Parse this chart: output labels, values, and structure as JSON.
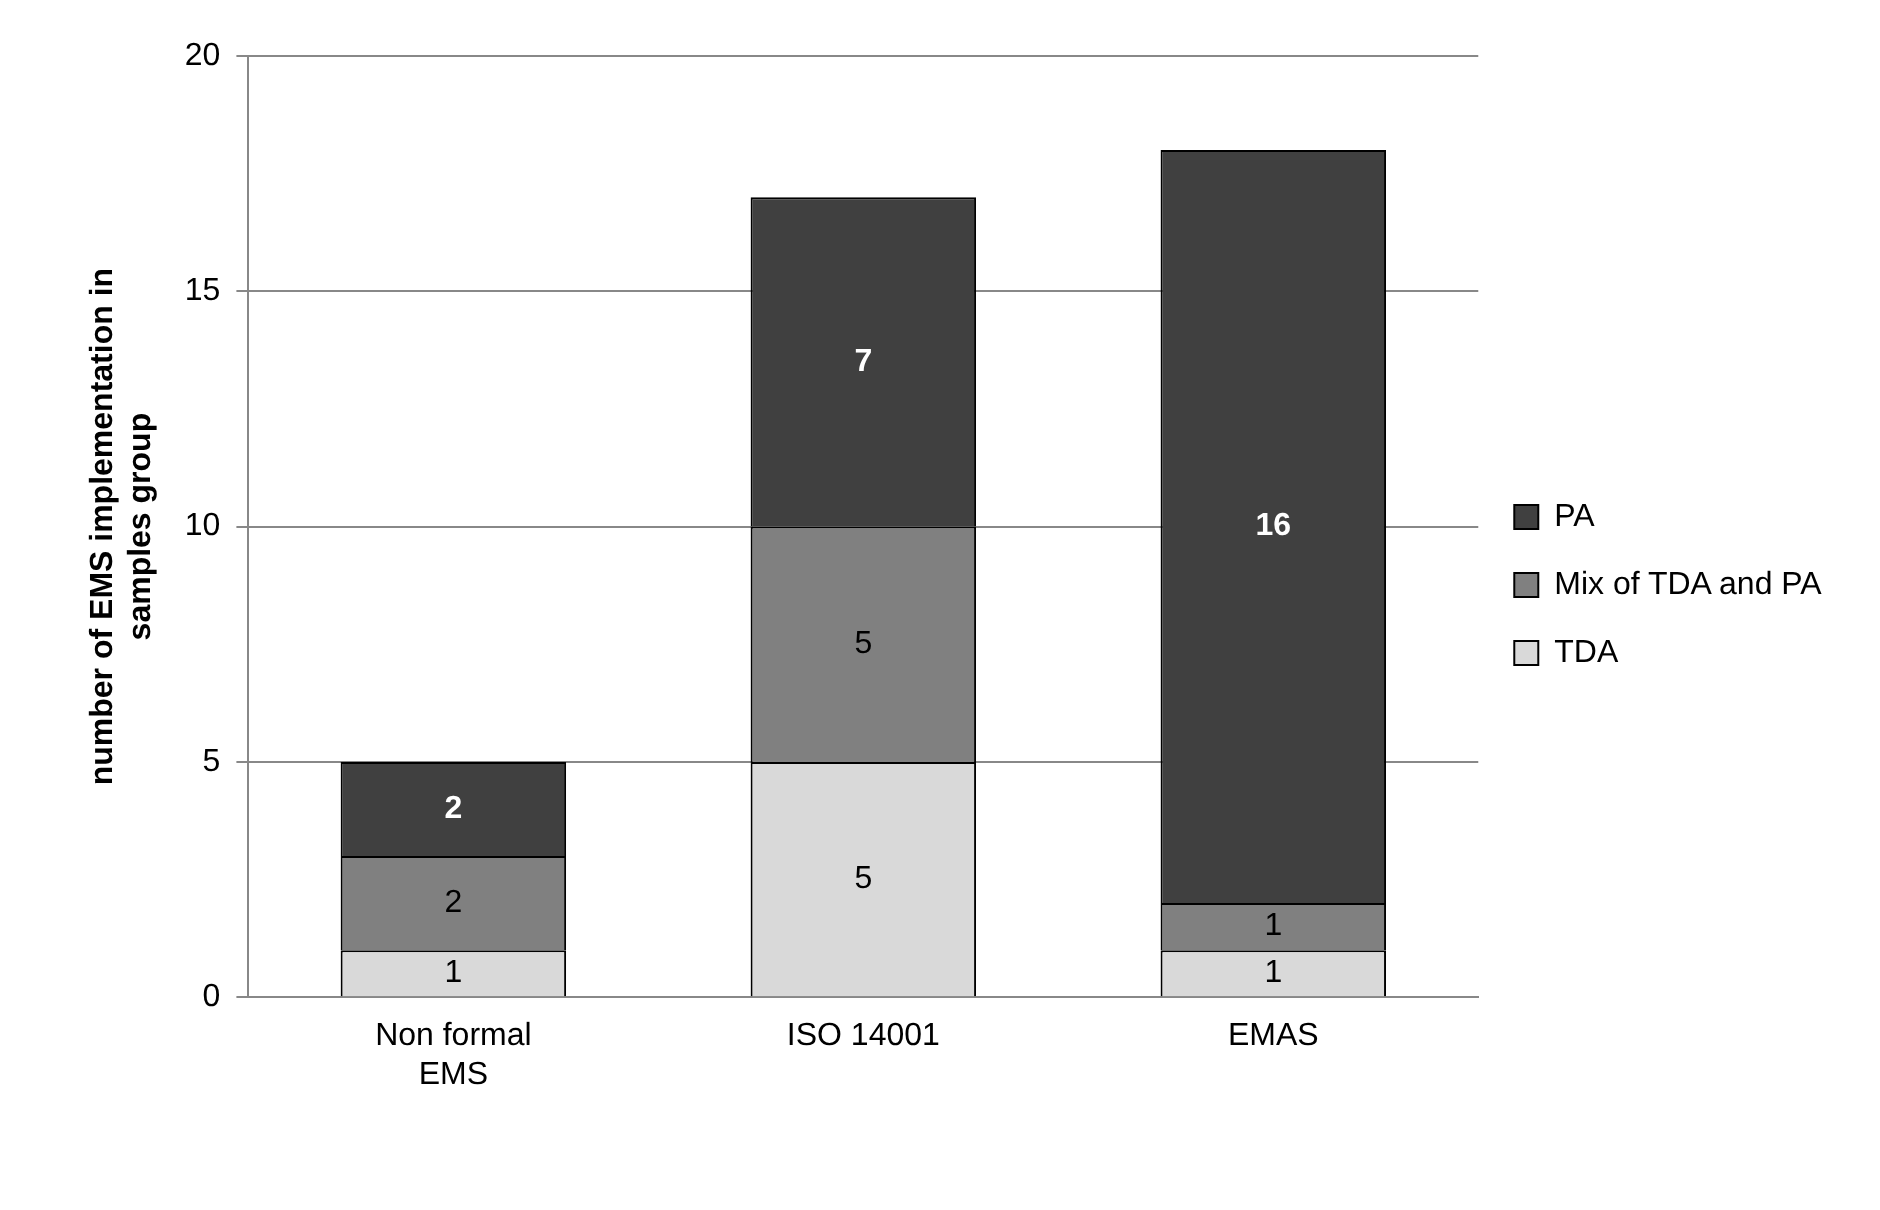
{
  "chart_data": {
    "type": "bar",
    "ylabel": "number of EMS implementation in samples group",
    "categories": [
      "Non formal EMS",
      "ISO 14001",
      "EMAS"
    ],
    "series": [
      {
        "name": "TDA",
        "color": "#d9d9d9",
        "values": [
          1,
          5,
          1
        ]
      },
      {
        "name": "Mix of TDA and PA",
        "color": "#808080",
        "values": [
          2,
          5,
          1
        ]
      },
      {
        "name": "PA",
        "color": "#404040",
        "values": [
          2,
          7,
          16
        ]
      }
    ],
    "stacked": true,
    "ylim": [
      0,
      20
    ],
    "yticks": [
      0,
      5,
      10,
      15,
      20
    ],
    "grid": "y",
    "legend": "right",
    "data_labels": true
  }
}
